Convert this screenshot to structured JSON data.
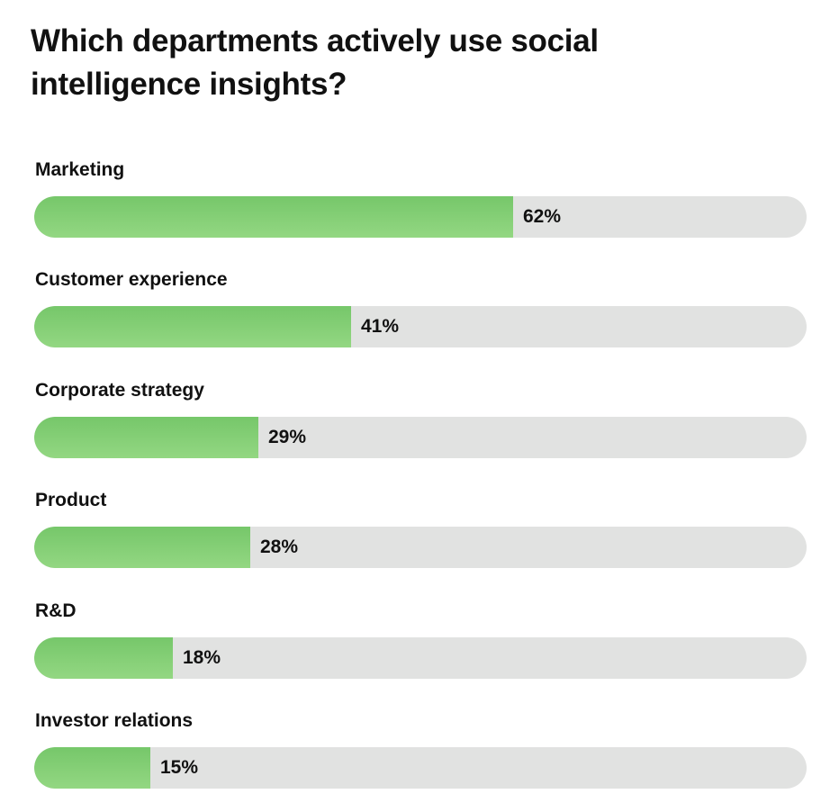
{
  "chart_data": {
    "type": "bar",
    "orientation": "horizontal",
    "title": "Which departments actively use social intelligence insights?",
    "categories": [
      "Marketing",
      "Customer experience",
      "Corporate strategy",
      "Product",
      "R&D",
      "Investor relations"
    ],
    "values": [
      62,
      41,
      29,
      28,
      18,
      15
    ],
    "value_labels": [
      "62%",
      "41%",
      "29%",
      "28%",
      "18%",
      "15%"
    ],
    "unit": "%",
    "xlim": [
      0,
      100
    ],
    "grid": false,
    "legend": "none",
    "colors": {
      "bar_fill": "#85cf76",
      "track": "#e1e2e1",
      "text": "#111111"
    }
  }
}
